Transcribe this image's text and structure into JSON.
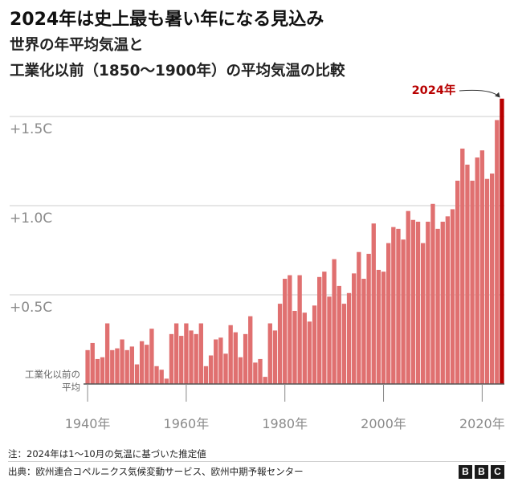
{
  "title": "2024年は史上最も暑い年になる見込み",
  "subtitle_line1": "世界の年平均気温と",
  "subtitle_line2": "工業化以前（1850〜1900年）の平均気温の比較",
  "note": "注：2024年は1〜10月の気温に基づいた推定値",
  "source": "出典：欧州連合コペルニクス気候変動サービス、欧州中期予報センター",
  "logo": [
    "B",
    "B",
    "C"
  ],
  "colors": {
    "bar": "#e07070",
    "highlight": "#b80000",
    "grid": "#cccccc",
    "axis_text": "#8a8a8a"
  },
  "chart_data": {
    "type": "bar",
    "title": "",
    "xlabel": "",
    "ylabel": "",
    "x_start": 1940,
    "x_end": 2024,
    "ylim": [
      0,
      1.62
    ],
    "grid": true,
    "y_ticks": [
      {
        "value": 1.5,
        "label": "+1.5C"
      },
      {
        "value": 1.0,
        "label": "+1.0C"
      },
      {
        "value": 0.5,
        "label": "+0.5C"
      }
    ],
    "baseline_label": [
      "工業化以前の",
      "平均"
    ],
    "x_ticks": [
      {
        "value": 1940,
        "label": "1940年"
      },
      {
        "value": 1960,
        "label": "1960年"
      },
      {
        "value": 1980,
        "label": "1980年"
      },
      {
        "value": 2000,
        "label": "2000年"
      },
      {
        "value": 2020,
        "label": "2020年"
      }
    ],
    "highlight": {
      "year": 2024,
      "label": "2024年"
    },
    "years": [
      1940,
      1941,
      1942,
      1943,
      1944,
      1945,
      1946,
      1947,
      1948,
      1949,
      1950,
      1951,
      1952,
      1953,
      1954,
      1955,
      1956,
      1957,
      1958,
      1959,
      1960,
      1961,
      1962,
      1963,
      1964,
      1965,
      1966,
      1967,
      1968,
      1969,
      1970,
      1971,
      1972,
      1973,
      1974,
      1975,
      1976,
      1977,
      1978,
      1979,
      1980,
      1981,
      1982,
      1983,
      1984,
      1985,
      1986,
      1987,
      1988,
      1989,
      1990,
      1991,
      1992,
      1993,
      1994,
      1995,
      1996,
      1997,
      1998,
      1999,
      2000,
      2001,
      2002,
      2003,
      2004,
      2005,
      2006,
      2007,
      2008,
      2009,
      2010,
      2011,
      2012,
      2013,
      2014,
      2015,
      2016,
      2017,
      2018,
      2019,
      2020,
      2021,
      2022,
      2023,
      2024
    ],
    "values": [
      0.19,
      0.23,
      0.14,
      0.15,
      0.34,
      0.19,
      0.2,
      0.25,
      0.19,
      0.21,
      0.11,
      0.24,
      0.22,
      0.31,
      0.1,
      0.08,
      0.03,
      0.28,
      0.34,
      0.27,
      0.34,
      0.3,
      0.28,
      0.34,
      0.1,
      0.16,
      0.25,
      0.26,
      0.17,
      0.33,
      0.29,
      0.15,
      0.28,
      0.38,
      0.12,
      0.14,
      0.04,
      0.34,
      0.3,
      0.45,
      0.59,
      0.61,
      0.41,
      0.61,
      0.4,
      0.35,
      0.44,
      0.6,
      0.63,
      0.49,
      0.7,
      0.55,
      0.45,
      0.51,
      0.62,
      0.74,
      0.59,
      0.73,
      0.9,
      0.64,
      0.63,
      0.79,
      0.88,
      0.87,
      0.81,
      0.97,
      0.92,
      0.91,
      0.79,
      0.91,
      1.01,
      0.87,
      0.91,
      0.94,
      0.98,
      1.14,
      1.32,
      1.23,
      1.14,
      1.27,
      1.31,
      1.15,
      1.18,
      1.48,
      1.6
    ]
  }
}
